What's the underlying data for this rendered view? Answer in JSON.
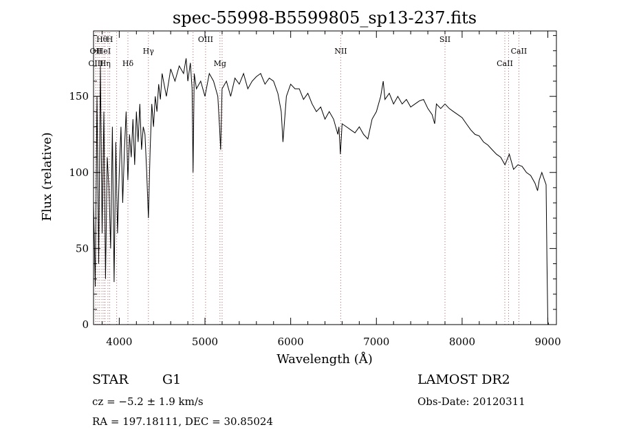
{
  "chart_data": {
    "type": "line",
    "title": "spec-55998-B5599805_sp13-237.fits",
    "xlabel": "Wavelength (Å)",
    "ylabel": "Flux (relative)",
    "xlim": [
      3700,
      9100
    ],
    "ylim": [
      0,
      193
    ],
    "xticks": [
      4000,
      5000,
      6000,
      7000,
      8000,
      9000
    ],
    "yticks": [
      0,
      50,
      100,
      150
    ],
    "series": [
      {
        "x": [
          3700,
          3720,
          3740,
          3760,
          3780,
          3800,
          3820,
          3840,
          3860,
          3880,
          3900,
          3920,
          3940,
          3960,
          3980,
          4000,
          4020,
          4040,
          4060,
          4080,
          4100,
          4120,
          4140,
          4160,
          4180,
          4200,
          4220,
          4240,
          4260,
          4280,
          4300,
          4320,
          4340,
          4360,
          4380,
          4400,
          4420,
          4440,
          4460,
          4480,
          4500,
          4550,
          4600,
          4650,
          4700,
          4750,
          4780,
          4800,
          4830,
          4850,
          4861,
          4875,
          4900,
          4950,
          5000,
          5050,
          5100,
          5150,
          5170,
          5183,
          5200,
          5250,
          5300,
          5350,
          5400,
          5450,
          5500,
          5550,
          5600,
          5650,
          5700,
          5750,
          5800,
          5850,
          5890,
          5910,
          5950,
          6000,
          6050,
          6100,
          6150,
          6200,
          6250,
          6300,
          6350,
          6400,
          6450,
          6500,
          6550,
          6563,
          6580,
          6600,
          6650,
          6700,
          6750,
          6800,
          6850,
          6900,
          6950,
          7000,
          7050,
          7080,
          7100,
          7150,
          7200,
          7250,
          7300,
          7350,
          7400,
          7450,
          7500,
          7550,
          7600,
          7650,
          7680,
          7700,
          7750,
          7800,
          7850,
          7900,
          7950,
          8000,
          8050,
          8100,
          8150,
          8200,
          8250,
          8300,
          8350,
          8400,
          8450,
          8500,
          8550,
          8600,
          8650,
          8700,
          8750,
          8800,
          8850,
          8880,
          8900,
          8930,
          8960,
          8980,
          8990,
          9000,
          9010
        ],
        "y": [
          80,
          25,
          150,
          40,
          170,
          60,
          140,
          30,
          110,
          90,
          50,
          130,
          28,
          120,
          60,
          100,
          130,
          80,
          115,
          140,
          95,
          125,
          110,
          135,
          105,
          140,
          120,
          145,
          115,
          130,
          125,
          100,
          70,
          115,
          145,
          130,
          150,
          140,
          158,
          148,
          165,
          150,
          168,
          160,
          170,
          165,
          175,
          160,
          172,
          155,
          100,
          165,
          155,
          160,
          150,
          165,
          160,
          150,
          130,
          115,
          155,
          160,
          150,
          162,
          158,
          165,
          155,
          160,
          163,
          165,
          158,
          162,
          160,
          152,
          140,
          120,
          150,
          158,
          155,
          155,
          148,
          152,
          145,
          140,
          143,
          135,
          140,
          135,
          125,
          130,
          112,
          132,
          130,
          128,
          126,
          130,
          125,
          122,
          135,
          140,
          150,
          160,
          148,
          152,
          145,
          150,
          145,
          148,
          143,
          145,
          147,
          148,
          142,
          138,
          132,
          145,
          142,
          145,
          142,
          140,
          138,
          136,
          132,
          128,
          125,
          124,
          120,
          118,
          115,
          112,
          110,
          105,
          112,
          102,
          105,
          104,
          100,
          98,
          93,
          88,
          95,
          100,
          95,
          92,
          40,
          2,
          0
        ]
      }
    ],
    "emission_lines": [
      {
        "label": "Hθ",
        "x": 3798,
        "row": 1
      },
      {
        "label": "H",
        "x": 3889,
        "row": 1
      },
      {
        "label": "OII",
        "x": 3727,
        "row": 2
      },
      {
        "label": "HeI",
        "x": 3820,
        "row": 2
      },
      {
        "label": "OIII",
        "x": 3727,
        "row": 3
      },
      {
        "label": "Hη",
        "x": 3835,
        "row": 3
      },
      {
        "label": "Hδ",
        "x": 4101,
        "row": 3
      },
      {
        "label": "Hγ",
        "x": 4340,
        "row": 2
      },
      {
        "label": "OIII",
        "x": 5007,
        "row": 1
      },
      {
        "label": "Mg",
        "x": 5175,
        "row": 3
      },
      {
        "label": "NII",
        "x": 6584,
        "row": 2
      },
      {
        "label": "SII",
        "x": 7800,
        "row": 1
      },
      {
        "label": "CaII",
        "x": 8498,
        "row": 3
      },
      {
        "label": "CaII",
        "x": 8662,
        "row": 2
      }
    ],
    "extra_dotted_lines": [
      3750,
      3771,
      3868,
      3970,
      4861,
      5200,
      8542
    ],
    "grid": false,
    "legend": "none"
  },
  "info": {
    "object_type": "STAR",
    "subclass": "G1",
    "survey": "LAMOST DR2",
    "redshift": "cz = −5.2 ± 1.9 km/s",
    "obs_date": "Obs-Date: 20120311",
    "coords": "RA = 197.18111, DEC =  30.85024"
  }
}
